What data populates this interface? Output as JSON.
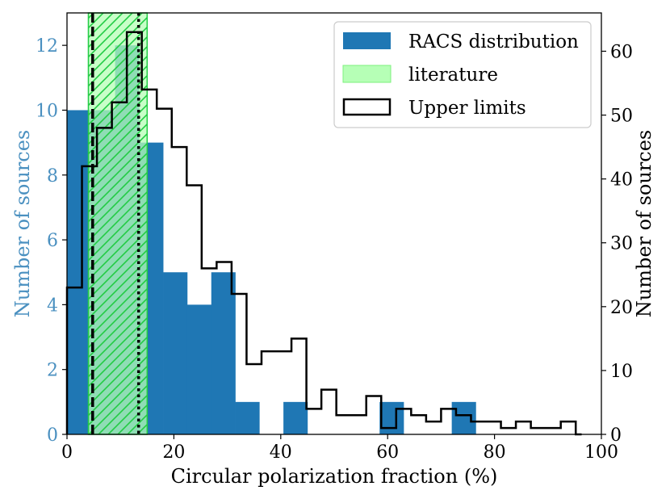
{
  "chart_data": {
    "type": "histogram",
    "title": "",
    "xlabel": "Circular polarization fraction (%)",
    "ylabel_left": "Number of sources",
    "ylabel_right": "Number of sources",
    "xlim": [
      0,
      100
    ],
    "ylim_left": [
      0,
      13
    ],
    "ylim_right": [
      0,
      66
    ],
    "x_ticks": [
      0,
      20,
      40,
      60,
      80,
      100
    ],
    "y_ticks_left": [
      0,
      2,
      4,
      6,
      8,
      10,
      12
    ],
    "y_ticks_right": [
      0,
      10,
      20,
      30,
      40,
      50,
      60
    ],
    "grid": false,
    "legend_position": "top-right",
    "colors": {
      "racs": "#1f77b4",
      "literature_fill": "#b6ffb6",
      "literature_hatch": "#22cc44",
      "upper_limits": "#000000",
      "left_axis_text": "#4a90c0",
      "right_axis_text": "#000000"
    },
    "series": [
      {
        "name": "RACS distribution",
        "kind": "bar",
        "axis": "left",
        "bins": [
          {
            "x0": 0.0,
            "x1": 4.5,
            "y": 10
          },
          {
            "x0": 4.5,
            "x1": 9.0,
            "y": 10
          },
          {
            "x0": 9.0,
            "x1": 13.5,
            "y": 12
          },
          {
            "x0": 13.5,
            "x1": 18.0,
            "y": 9
          },
          {
            "x0": 18.0,
            "x1": 22.5,
            "y": 5
          },
          {
            "x0": 22.5,
            "x1": 27.0,
            "y": 4
          },
          {
            "x0": 27.0,
            "x1": 31.5,
            "y": 5
          },
          {
            "x0": 31.5,
            "x1": 36.0,
            "y": 1
          },
          {
            "x0": 40.5,
            "x1": 45.0,
            "y": 1
          },
          {
            "x0": 58.5,
            "x1": 63.0,
            "y": 1
          },
          {
            "x0": 72.0,
            "x1": 76.5,
            "y": 1
          }
        ]
      },
      {
        "name": "literature",
        "kind": "span",
        "x0": 4.0,
        "x1": 15.0
      },
      {
        "name": "Upper limits",
        "kind": "step",
        "axis": "right",
        "edges": [
          0,
          2.8,
          5.6,
          8.4,
          11.2,
          14,
          16.8,
          19.6,
          22.4,
          25.2,
          28,
          30.8,
          33.6,
          36.4,
          39.2,
          42,
          44.8,
          47.6,
          50.4,
          53.2,
          56,
          58.8,
          61.6,
          64.4,
          67.2,
          70,
          72.8,
          75.6,
          78.4,
          81.2,
          84,
          86.8,
          89.6,
          92.4,
          95.2,
          96.3
        ],
        "counts": [
          23,
          42,
          48,
          52,
          63,
          54,
          51,
          45,
          39,
          26,
          27,
          22,
          11,
          13,
          13,
          15,
          4,
          7,
          3,
          3,
          6,
          1,
          4,
          3,
          2,
          4,
          3,
          2,
          2,
          1,
          2,
          1,
          1,
          2,
          0
        ]
      }
    ],
    "vlines": [
      {
        "x": 4.8,
        "style": "dashed"
      },
      {
        "x": 13.4,
        "style": "dotted"
      }
    ]
  }
}
